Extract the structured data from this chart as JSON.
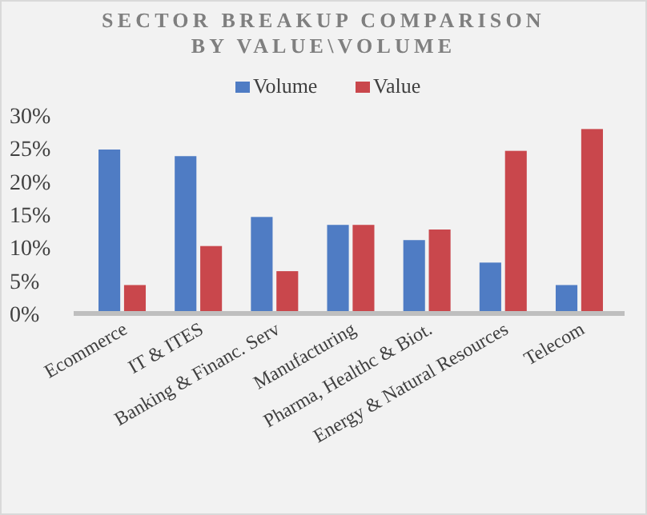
{
  "chart_data": {
    "type": "bar",
    "title": "SECTOR BREAKUP COMPARISON BY VALUE\\VOLUME",
    "categories": [
      "Ecommerce",
      "IT & ITES",
      "Banking & Financ. Serv",
      "Manufacturing",
      "Pharma, Healthc & Biot.",
      "Energy & Natural Resources",
      "Telecom"
    ],
    "series": [
      {
        "name": "Volume",
        "color": "#4f7cc4",
        "values": [
          24.8,
          23.8,
          14.6,
          13.4,
          11.1,
          7.7,
          4.3
        ]
      },
      {
        "name": "Value",
        "color": "#c9474c",
        "values": [
          4.3,
          10.2,
          6.4,
          13.4,
          12.7,
          24.6,
          27.9
        ]
      }
    ],
    "ylim": [
      0,
      30
    ],
    "yticks": [
      {
        "value": 0,
        "label": "0%"
      },
      {
        "value": 5,
        "label": "5%"
      },
      {
        "value": 10,
        "label": "10%"
      },
      {
        "value": 15,
        "label": "15%"
      },
      {
        "value": 20,
        "label": "20%"
      },
      {
        "value": 25,
        "label": "25%"
      },
      {
        "value": 30,
        "label": "30%"
      }
    ],
    "grid": false,
    "legend": "top"
  }
}
